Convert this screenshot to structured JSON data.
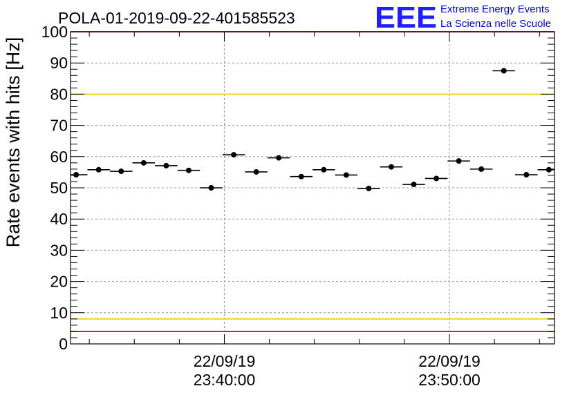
{
  "chart_data": {
    "type": "scatter",
    "title": "POLA-01-2019-09-22-401585523",
    "xlabel": "",
    "ylabel": "Rate events with hits [Hz]",
    "ylim": [
      0,
      100
    ],
    "xlim": [
      "2019-09-22T23:33:10",
      "2019-09-22T23:54:40"
    ],
    "grid": true,
    "y_ticks": [
      0,
      10,
      20,
      30,
      40,
      50,
      60,
      70,
      80,
      90,
      100
    ],
    "x_tick_labels": [
      {
        "at": "2019-09-22T23:40:00",
        "date": "22/09/19",
        "time": "23:40:00"
      },
      {
        "at": "2019-09-22T23:50:00",
        "date": "22/09/19",
        "time": "23:50:00"
      }
    ],
    "threshold_lines": [
      {
        "y": 100,
        "color": "#ff0000"
      },
      {
        "y": 80,
        "color": "#f5d000"
      },
      {
        "y": 8,
        "color": "#f5d000"
      },
      {
        "y": 4,
        "color": "#ff0000"
      }
    ],
    "series": [
      {
        "marker_color": "#000000",
        "bin_width_minutes": 1,
        "points": [
          {
            "x": "2019-09-22T23:33:25",
            "y": 54.2
          },
          {
            "x": "2019-09-22T23:34:25",
            "y": 55.8
          },
          {
            "x": "2019-09-22T23:35:25",
            "y": 55.3
          },
          {
            "x": "2019-09-22T23:36:25",
            "y": 58.0
          },
          {
            "x": "2019-09-22T23:37:25",
            "y": 57.1
          },
          {
            "x": "2019-09-22T23:38:25",
            "y": 55.6
          },
          {
            "x": "2019-09-22T23:39:25",
            "y": 50.0
          },
          {
            "x": "2019-09-22T23:40:25",
            "y": 60.6
          },
          {
            "x": "2019-09-22T23:41:25",
            "y": 55.1
          },
          {
            "x": "2019-09-22T23:42:25",
            "y": 59.6
          },
          {
            "x": "2019-09-22T23:43:25",
            "y": 53.6
          },
          {
            "x": "2019-09-22T23:44:25",
            "y": 55.8
          },
          {
            "x": "2019-09-22T23:45:25",
            "y": 54.1
          },
          {
            "x": "2019-09-22T23:46:25",
            "y": 49.8
          },
          {
            "x": "2019-09-22T23:47:25",
            "y": 56.7
          },
          {
            "x": "2019-09-22T23:48:25",
            "y": 51.1
          },
          {
            "x": "2019-09-22T23:49:25",
            "y": 53.0
          },
          {
            "x": "2019-09-22T23:50:25",
            "y": 58.6
          },
          {
            "x": "2019-09-22T23:51:25",
            "y": 56.0
          },
          {
            "x": "2019-09-22T23:52:25",
            "y": 87.5
          },
          {
            "x": "2019-09-22T23:53:25",
            "y": 54.2
          },
          {
            "x": "2019-09-22T23:54:25",
            "y": 55.8
          }
        ]
      }
    ]
  },
  "logo": {
    "mark": "EEE",
    "line1": "Extreme Energy Events",
    "line2": "La Scienza nelle Scuole"
  }
}
